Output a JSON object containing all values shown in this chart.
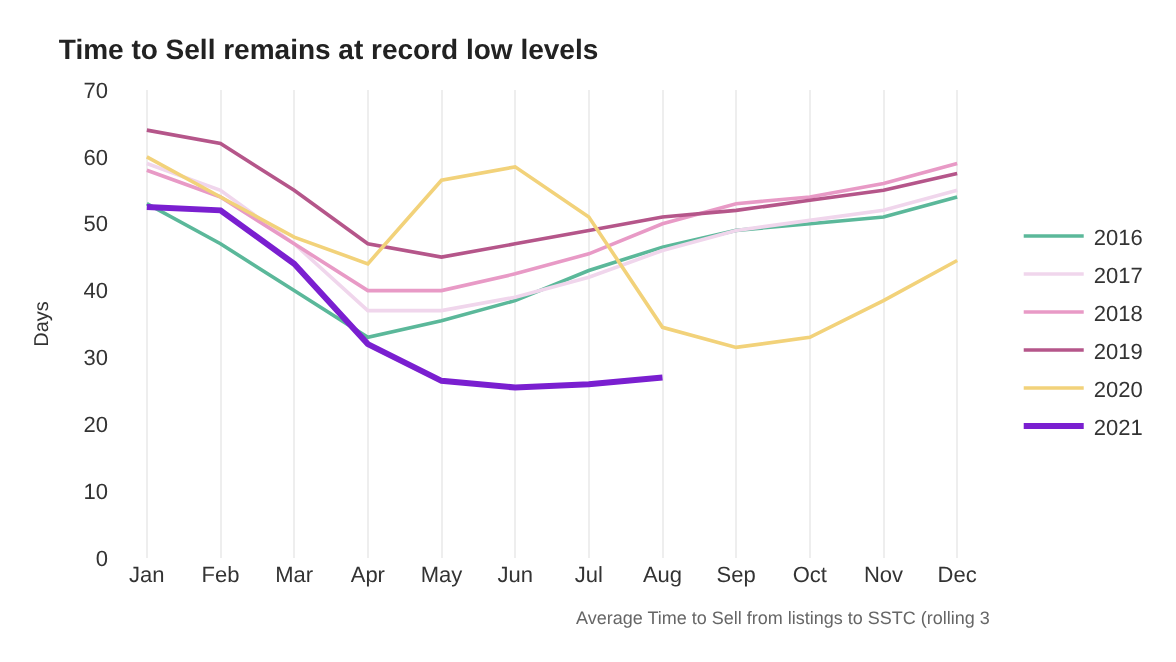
{
  "chart_data": {
    "type": "line",
    "title": "Time to Sell remains at record low levels",
    "ylabel": "Days",
    "categories": [
      "Jan",
      "Feb",
      "Mar",
      "Apr",
      "May",
      "Jun",
      "Jul",
      "Aug",
      "Sep",
      "Oct",
      "Nov",
      "Dec"
    ],
    "series": [
      {
        "name": "2016",
        "color": "#5bb89a",
        "values": [
          53,
          47,
          40,
          33,
          35.5,
          38.5,
          43,
          46.5,
          49,
          50,
          51,
          54
        ]
      },
      {
        "name": "2017",
        "color": "#f0d6ec",
        "values": [
          59,
          55,
          47,
          37,
          37,
          39,
          42,
          46,
          49,
          50.5,
          52,
          55
        ]
      },
      {
        "name": "2018",
        "color": "#e89ac6",
        "values": [
          58,
          54,
          47,
          40,
          40,
          42.5,
          45.5,
          50,
          53,
          54,
          56,
          59
        ]
      },
      {
        "name": "2019",
        "color": "#b5568a",
        "values": [
          64,
          62,
          55,
          47,
          45,
          47,
          49,
          51,
          52,
          53.5,
          55,
          57.5
        ]
      },
      {
        "name": "2020",
        "color": "#f2d27a",
        "values": [
          60,
          54,
          48,
          44,
          56.5,
          58.5,
          51,
          34.5,
          31.5,
          33,
          38.5,
          44.5
        ]
      },
      {
        "name": "2021",
        "color": "#7a1fd0",
        "values": [
          52.5,
          52,
          44,
          32,
          26.5,
          25.5,
          26,
          27,
          null,
          null,
          null,
          null
        ]
      }
    ],
    "ylim": [
      0,
      70
    ],
    "yticks": [
      0,
      10,
      20,
      30,
      40,
      50,
      60,
      70
    ],
    "grid": "x",
    "legend": "right",
    "marker": "none",
    "line_style": "solid",
    "annotations": [
      "Average Time to Sell from listings to SSTC (rolling 3"
    ]
  }
}
